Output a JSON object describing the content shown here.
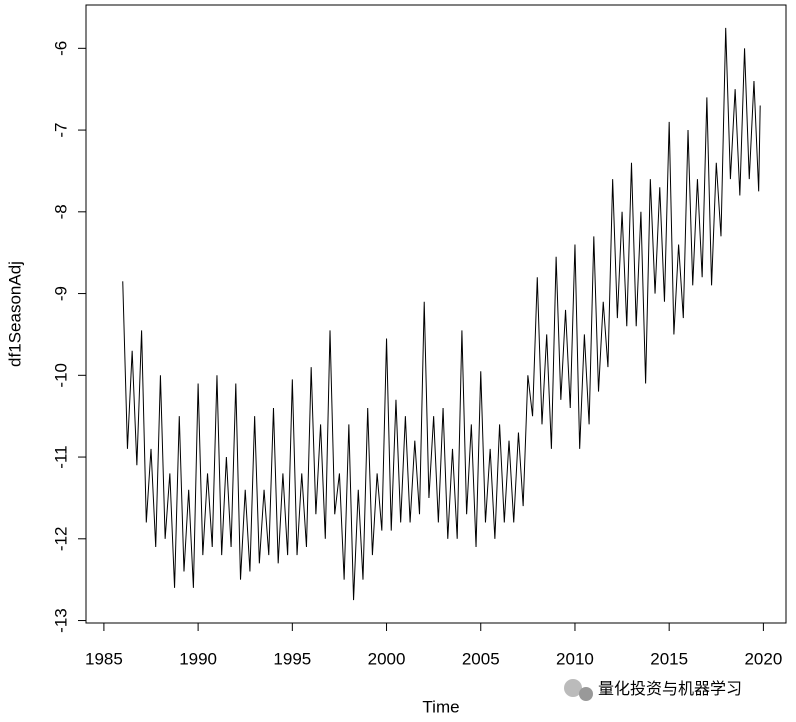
{
  "chart_data": {
    "type": "line",
    "xlabel": "Time",
    "ylabel": "df1SeasonAdj",
    "watermark": "量化投资与机器学习",
    "color": "#000000",
    "xlim": [
      1984.05,
      2021.2
    ],
    "ylim": [
      -13.03,
      -5.47
    ],
    "xticks": [
      1985,
      1990,
      1995,
      2000,
      2005,
      2010,
      2015,
      2020
    ],
    "yticks": [
      -13,
      -12,
      -11,
      -10,
      -9,
      -8,
      -7,
      -6
    ],
    "x": [
      1986,
      1986.25,
      1986.5,
      1986.75,
      1987,
      1987.25,
      1987.5,
      1987.75,
      1988,
      1988.25,
      1988.5,
      1988.75,
      1989,
      1989.25,
      1989.5,
      1989.75,
      1990,
      1990.25,
      1990.5,
      1990.75,
      1991,
      1991.25,
      1991.5,
      1991.75,
      1992,
      1992.25,
      1992.5,
      1992.75,
      1993,
      1993.25,
      1993.5,
      1993.75,
      1994,
      1994.25,
      1994.5,
      1994.75,
      1995,
      1995.25,
      1995.5,
      1995.75,
      1996,
      1996.25,
      1996.5,
      1996.75,
      1997,
      1997.25,
      1997.5,
      1997.75,
      1998,
      1998.25,
      1998.5,
      1998.75,
      1999,
      1999.25,
      1999.5,
      1999.75,
      2000,
      2000.25,
      2000.5,
      2000.75,
      2001,
      2001.25,
      2001.5,
      2001.75,
      2002,
      2002.25,
      2002.5,
      2002.75,
      2003,
      2003.25,
      2003.5,
      2003.75,
      2004,
      2004.25,
      2004.5,
      2004.75,
      2005,
      2005.25,
      2005.5,
      2005.75,
      2006,
      2006.25,
      2006.5,
      2006.75,
      2007,
      2007.25,
      2007.5,
      2007.75,
      2008,
      2008.25,
      2008.5,
      2008.75,
      2009,
      2009.25,
      2009.5,
      2009.75,
      2010,
      2010.25,
      2010.5,
      2010.75,
      2011,
      2011.25,
      2011.5,
      2011.75,
      2012,
      2012.25,
      2012.5,
      2012.75,
      2013,
      2013.25,
      2013.5,
      2013.75,
      2014,
      2014.25,
      2014.5,
      2014.75,
      2015,
      2015.25,
      2015.5,
      2015.75,
      2016,
      2016.25,
      2016.5,
      2016.75,
      2017,
      2017.25,
      2017.5,
      2017.75,
      2018,
      2018.25,
      2018.5,
      2018.75,
      2019,
      2019.25,
      2019.5,
      2019.75,
      2019.83
    ],
    "values": [
      -8.85,
      -10.9,
      -9.7,
      -11.1,
      -9.45,
      -11.8,
      -10.9,
      -12.1,
      -10.0,
      -12.0,
      -11.2,
      -12.6,
      -10.5,
      -12.4,
      -11.4,
      -12.6,
      -10.1,
      -12.2,
      -11.2,
      -12.1,
      -10.0,
      -12.2,
      -11.0,
      -12.1,
      -10.1,
      -12.5,
      -11.4,
      -12.4,
      -10.5,
      -12.3,
      -11.4,
      -12.2,
      -10.4,
      -12.3,
      -11.2,
      -12.2,
      -10.05,
      -12.2,
      -11.2,
      -12.1,
      -9.9,
      -11.7,
      -10.6,
      -12.0,
      -9.45,
      -11.7,
      -11.2,
      -12.5,
      -10.6,
      -12.75,
      -11.4,
      -12.5,
      -10.4,
      -12.2,
      -11.2,
      -11.9,
      -9.55,
      -11.9,
      -10.3,
      -11.8,
      -10.5,
      -11.8,
      -10.8,
      -11.7,
      -9.1,
      -11.5,
      -10.5,
      -11.8,
      -10.4,
      -12.0,
      -10.9,
      -12.0,
      -9.45,
      -11.7,
      -10.6,
      -12.1,
      -9.95,
      -11.8,
      -10.9,
      -12.0,
      -10.6,
      -11.8,
      -10.8,
      -11.8,
      -10.7,
      -11.6,
      -10.0,
      -10.5,
      -8.8,
      -10.6,
      -9.5,
      -10.9,
      -8.55,
      -10.3,
      -9.2,
      -10.4,
      -8.4,
      -10.9,
      -9.5,
      -10.6,
      -8.3,
      -10.2,
      -9.1,
      -9.9,
      -7.6,
      -9.3,
      -8.0,
      -9.4,
      -7.4,
      -9.4,
      -8.0,
      -10.1,
      -7.6,
      -9.0,
      -7.7,
      -9.1,
      -6.9,
      -9.5,
      -8.4,
      -9.3,
      -7.0,
      -8.9,
      -7.6,
      -8.8,
      -6.6,
      -8.9,
      -7.4,
      -8.3,
      -5.75,
      -7.6,
      -6.5,
      -7.8,
      -6.0,
      -7.6,
      -6.4,
      -7.75,
      -6.7
    ]
  }
}
